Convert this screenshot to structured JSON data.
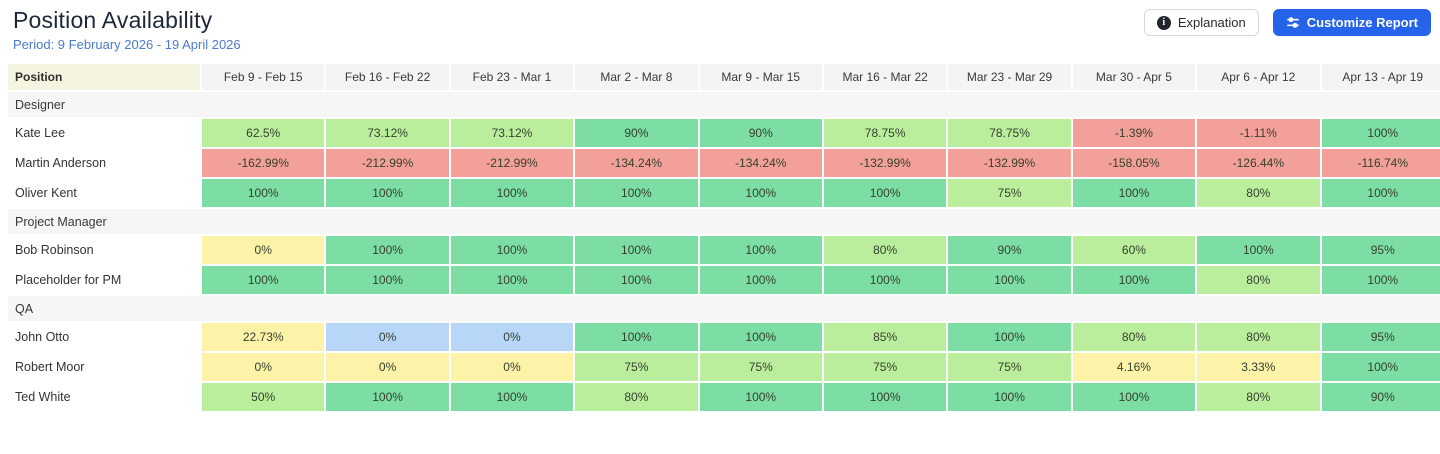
{
  "page": {
    "title": "Position Availability",
    "period": "Period: 9 February 2026 - 19 April 2026"
  },
  "toolbar": {
    "explanation_label": "Explanation",
    "customize_label": "Customize Report"
  },
  "colors": {
    "green": "#7cdda5",
    "light_green": "#baee9c",
    "yellow": "#fcf2a8",
    "red": "#f2a099",
    "blue": "#b7d6f8",
    "header_bg": "#f4f4f4",
    "position_header_bg": "#f5f4e1",
    "group_bg": "#f6f6f6",
    "edge": "#222222",
    "accent_blue": "#2563eb",
    "period_text": "#4b7ccc"
  },
  "table": {
    "position_header": "Position",
    "week_headers": [
      "Feb 9 - Feb 15",
      "Feb 16 - Feb 22",
      "Feb 23 - Mar 1",
      "Mar 2 - Mar 8",
      "Mar 9 - Mar 15",
      "Mar 16 - Mar 22",
      "Mar 23 - Mar 29",
      "Mar 30 - Apr 5",
      "Apr 6 - Apr 12",
      "Apr 13 - Apr 19"
    ],
    "groups": [
      {
        "label": "Designer",
        "rows": [
          {
            "name": "Kate Lee",
            "cells": [
              {
                "v": "62.5%",
                "c": "light_green"
              },
              {
                "v": "73.12%",
                "c": "light_green"
              },
              {
                "v": "73.12%",
                "c": "light_green"
              },
              {
                "v": "90%",
                "c": "green"
              },
              {
                "v": "90%",
                "c": "green"
              },
              {
                "v": "78.75%",
                "c": "light_green"
              },
              {
                "v": "78.75%",
                "c": "light_green"
              },
              {
                "v": "-1.39%",
                "c": "red"
              },
              {
                "v": "-1.11%",
                "c": "red"
              },
              {
                "v": "100%",
                "c": "green"
              }
            ]
          },
          {
            "name": "Martin Anderson",
            "cells": [
              {
                "v": "-162.99%",
                "c": "red"
              },
              {
                "v": "-212.99%",
                "c": "red"
              },
              {
                "v": "-212.99%",
                "c": "red"
              },
              {
                "v": "-134.24%",
                "c": "red"
              },
              {
                "v": "-134.24%",
                "c": "red"
              },
              {
                "v": "-132.99%",
                "c": "red"
              },
              {
                "v": "-132.99%",
                "c": "red"
              },
              {
                "v": "-158.05%",
                "c": "red"
              },
              {
                "v": "-126.44%",
                "c": "red"
              },
              {
                "v": "-116.74%",
                "c": "red"
              }
            ]
          },
          {
            "name": "Oliver Kent",
            "cells": [
              {
                "v": "100%",
                "c": "green"
              },
              {
                "v": "100%",
                "c": "green"
              },
              {
                "v": "100%",
                "c": "green"
              },
              {
                "v": "100%",
                "c": "green"
              },
              {
                "v": "100%",
                "c": "green"
              },
              {
                "v": "100%",
                "c": "green"
              },
              {
                "v": "75%",
                "c": "light_green"
              },
              {
                "v": "100%",
                "c": "green"
              },
              {
                "v": "80%",
                "c": "light_green"
              },
              {
                "v": "100%",
                "c": "green"
              }
            ]
          }
        ]
      },
      {
        "label": "Project Manager",
        "rows": [
          {
            "name": "Bob Robinson",
            "cells": [
              {
                "v": "0%",
                "c": "yellow"
              },
              {
                "v": "100%",
                "c": "green"
              },
              {
                "v": "100%",
                "c": "green"
              },
              {
                "v": "100%",
                "c": "green"
              },
              {
                "v": "100%",
                "c": "green"
              },
              {
                "v": "80%",
                "c": "light_green"
              },
              {
                "v": "90%",
                "c": "green"
              },
              {
                "v": "60%",
                "c": "light_green"
              },
              {
                "v": "100%",
                "c": "green"
              },
              {
                "v": "95%",
                "c": "green"
              }
            ]
          },
          {
            "name": "Placeholder for PM",
            "cells": [
              {
                "v": "100%",
                "c": "green"
              },
              {
                "v": "100%",
                "c": "green"
              },
              {
                "v": "100%",
                "c": "green"
              },
              {
                "v": "100%",
                "c": "green"
              },
              {
                "v": "100%",
                "c": "green"
              },
              {
                "v": "100%",
                "c": "green"
              },
              {
                "v": "100%",
                "c": "green"
              },
              {
                "v": "100%",
                "c": "green"
              },
              {
                "v": "80%",
                "c": "light_green"
              },
              {
                "v": "100%",
                "c": "green"
              }
            ]
          }
        ]
      },
      {
        "label": "QA",
        "rows": [
          {
            "name": "John Otto",
            "cells": [
              {
                "v": "22.73%",
                "c": "yellow"
              },
              {
                "v": "0%",
                "c": "blue"
              },
              {
                "v": "0%",
                "c": "blue"
              },
              {
                "v": "100%",
                "c": "green"
              },
              {
                "v": "100%",
                "c": "green"
              },
              {
                "v": "85%",
                "c": "light_green"
              },
              {
                "v": "100%",
                "c": "green"
              },
              {
                "v": "80%",
                "c": "light_green"
              },
              {
                "v": "80%",
                "c": "light_green"
              },
              {
                "v": "95%",
                "c": "green"
              }
            ]
          },
          {
            "name": "Robert Moor",
            "cells": [
              {
                "v": "0%",
                "c": "yellow"
              },
              {
                "v": "0%",
                "c": "yellow"
              },
              {
                "v": "0%",
                "c": "yellow"
              },
              {
                "v": "75%",
                "c": "light_green"
              },
              {
                "v": "75%",
                "c": "light_green"
              },
              {
                "v": "75%",
                "c": "light_green"
              },
              {
                "v": "75%",
                "c": "light_green"
              },
              {
                "v": "4.16%",
                "c": "yellow"
              },
              {
                "v": "3.33%",
                "c": "yellow"
              },
              {
                "v": "100%",
                "c": "green"
              }
            ]
          },
          {
            "name": "Ted White",
            "cells": [
              {
                "v": "50%",
                "c": "light_green"
              },
              {
                "v": "100%",
                "c": "green"
              },
              {
                "v": "100%",
                "c": "green"
              },
              {
                "v": "80%",
                "c": "light_green"
              },
              {
                "v": "100%",
                "c": "green"
              },
              {
                "v": "100%",
                "c": "green"
              },
              {
                "v": "100%",
                "c": "green"
              },
              {
                "v": "100%",
                "c": "green"
              },
              {
                "v": "80%",
                "c": "light_green"
              },
              {
                "v": "90%",
                "c": "green"
              }
            ]
          }
        ]
      }
    ]
  }
}
